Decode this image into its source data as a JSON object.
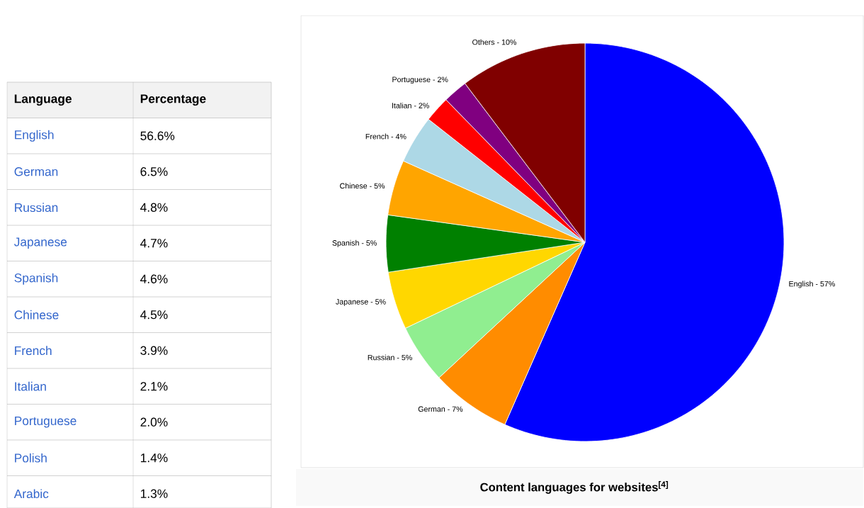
{
  "chart_data": [
    {
      "type": "other",
      "xlabel": "Language",
      "ylabel": "Percentage",
      "categories": [
        "English",
        "German",
        "Russian",
        "Japanese",
        "Spanish",
        "Chinese",
        "French",
        "Italian",
        "Portuguese",
        "Polish",
        "Arabic"
      ],
      "values": [
        56.6,
        6.5,
        4.8,
        4.7,
        4.6,
        4.5,
        3.9,
        2.1,
        2.0,
        1.4,
        1.3
      ],
      "value_labels": [
        "56.6%",
        "6.5%",
        "4.8%",
        "4.7%",
        "4.6%",
        "4.5%",
        "3.9%",
        "2.1%",
        "2.0%",
        "1.4%",
        "1.3%"
      ]
    },
    {
      "type": "pie",
      "title": "Content languages for websites$^{[4]}$",
      "categories": [
        "English - 57%",
        "German - 7%",
        "Russian - 5%",
        "Japanese - 5%",
        "Spanish - 5%",
        "Chinese - 5%",
        "French - 4%",
        "Italian - 2%",
        "Portuguese - 2%",
        "Others - 10%"
      ],
      "values": [
        56.6,
        6.5,
        4.8,
        4.7,
        4.6,
        4.5,
        3.9,
        2.1,
        2.0,
        10.3
      ],
      "colors": [
        "#0000ff",
        "#ff8c00",
        "#90ee90",
        "#ffd700",
        "#008000",
        "#ffa500",
        "#add8e6",
        "#ff0000",
        "#800080",
        "#800000"
      ]
    }
  ]
}
